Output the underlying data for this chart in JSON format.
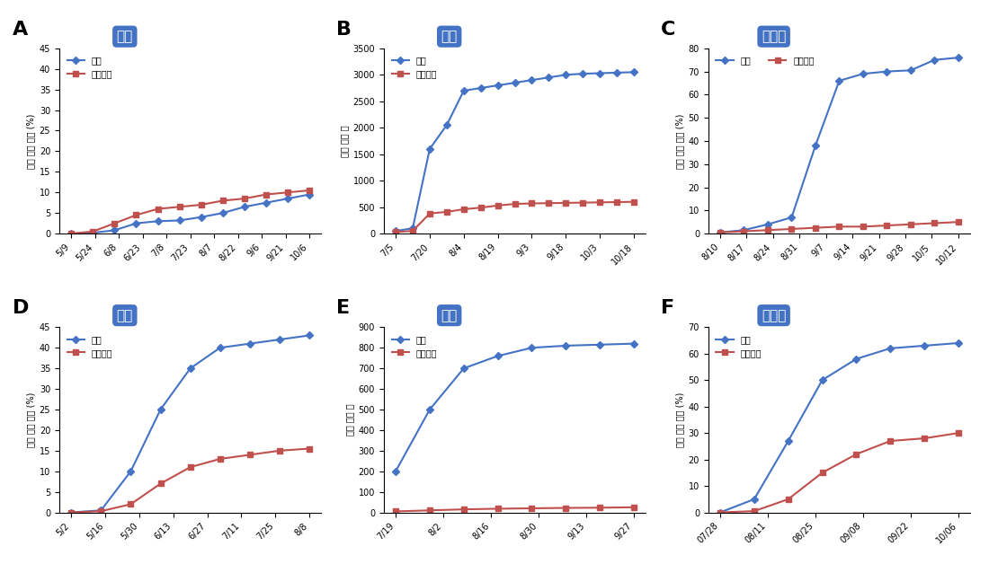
{
  "A": {
    "title": "봄순",
    "label": "A",
    "x_labels": [
      "5/9",
      "5/24",
      "6/8",
      "6/23",
      "7/8",
      "7/23",
      "8/7",
      "8/22",
      "9/6",
      "9/21",
      "10/6"
    ],
    "hagul": [
      0,
      0.2,
      0.8,
      2.5,
      3.0,
      3.2,
      4.0,
      5.0,
      6.5,
      7.5,
      8.5,
      9.5
    ],
    "onju": [
      0,
      0.5,
      2.5,
      4.5,
      6.0,
      6.5,
      7.0,
      8.0,
      8.5,
      9.5,
      10.0,
      10.5
    ],
    "ylabel": "병든 가지 비율 (%)",
    "ylim": [
      0,
      45
    ],
    "yticks": [
      0,
      5,
      10,
      15,
      20,
      25,
      30,
      35,
      40,
      45
    ]
  },
  "B": {
    "title": "과실",
    "label": "B",
    "x_labels": [
      "7/5",
      "7/20",
      "8/4",
      "8/19",
      "9/3",
      "9/18",
      "10/3",
      "10/18"
    ],
    "hagul": [
      50,
      100,
      1600,
      2050,
      2700,
      2750,
      2800,
      2850,
      2900,
      2950,
      3000,
      3020,
      3030,
      3040,
      3050
    ],
    "onju": [
      30,
      50,
      380,
      410,
      460,
      490,
      530,
      560,
      570,
      575,
      580,
      585,
      590,
      595,
      600
    ],
    "ylabel": "전체 발병 수",
    "ylim": [
      0,
      3500
    ],
    "yticks": [
      0,
      500,
      1000,
      1500,
      2000,
      2500,
      3000,
      3500
    ]
  },
  "C": {
    "title": "여름순",
    "label": "C",
    "x_labels": [
      "8/10",
      "8/17",
      "8/24",
      "8/31",
      "9/7",
      "9/14",
      "9/21",
      "9/28",
      "10/5",
      "10/12"
    ],
    "hagul": [
      0.5,
      1.5,
      4.0,
      7.0,
      38.0,
      66.0,
      69.0,
      70.0,
      70.5,
      75.0,
      76.0
    ],
    "onju": [
      0.5,
      1.0,
      1.5,
      2.0,
      2.5,
      3.0,
      3.0,
      3.5,
      4.0,
      4.5,
      5.0
    ],
    "ylabel": "병든 가지 비율 (%)",
    "ylim": [
      0,
      80
    ],
    "yticks": [
      0,
      10,
      20,
      30,
      40,
      50,
      60,
      70,
      80
    ]
  },
  "D": {
    "title": "봄순",
    "label": "D",
    "x_labels": [
      "5/2",
      "5/16",
      "5/30",
      "6/13",
      "6/27",
      "7/11",
      "7/25",
      "8/8"
    ],
    "hagul": [
      0,
      0.5,
      10,
      25,
      35,
      40,
      41,
      42,
      43
    ],
    "onju": [
      0,
      0.3,
      2,
      7,
      11,
      13,
      14,
      15,
      15.5
    ],
    "ylabel": "병든 가지 비율 (%)",
    "ylim": [
      0,
      45
    ],
    "yticks": [
      0,
      5,
      10,
      15,
      20,
      25,
      30,
      35,
      40,
      45
    ]
  },
  "E": {
    "title": "과실",
    "label": "E",
    "x_labels": [
      "7/19",
      "8/2",
      "8/16",
      "8/30",
      "9/13",
      "9/27"
    ],
    "hagul": [
      200,
      500,
      700,
      760,
      800,
      810,
      815,
      820
    ],
    "onju": [
      5,
      10,
      15,
      18,
      20,
      22,
      23,
      25
    ],
    "ylabel": "전체 발병 수",
    "ylim": [
      0,
      900
    ],
    "yticks": [
      0,
      100,
      200,
      300,
      400,
      500,
      600,
      700,
      800,
      900
    ]
  },
  "F": {
    "title": "여름순",
    "label": "F",
    "x_labels": [
      "07/28",
      "08/11",
      "08/25",
      "09/08",
      "09/22",
      "10/06"
    ],
    "hagul": [
      0,
      5,
      27,
      50,
      58,
      62,
      63,
      64
    ],
    "onju": [
      0,
      0.5,
      5,
      15,
      22,
      27,
      28,
      30
    ],
    "ylabel": "병든 가지 비율 (%)",
    "ylim": [
      0,
      70
    ],
    "yticks": [
      0,
      10,
      20,
      30,
      40,
      50,
      60,
      70
    ]
  },
  "blue_color": "#4472C4",
  "red_color": "#C0504D",
  "label_hagul": "하귤",
  "label_onju": "온주밀감",
  "title_box_color": "#4472C4",
  "title_text_color": "#FFFFFF"
}
